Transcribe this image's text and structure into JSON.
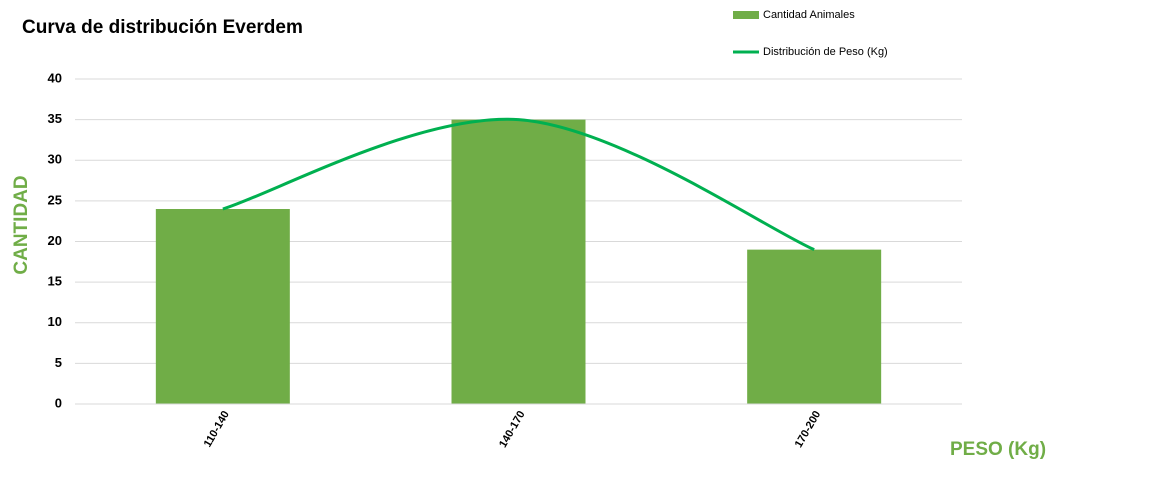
{
  "chart_data": {
    "type": "combo",
    "title": "Curva de distribución Everdem",
    "y_label": "CANTIDAD",
    "x_label": "PESO (Kg)",
    "categories": [
      "110-140",
      "140-170",
      "170-200"
    ],
    "series": [
      {
        "name": "Cantidad Animales",
        "type": "bar",
        "color": "#70ad47",
        "values": [
          24,
          35,
          19
        ]
      },
      {
        "name": "Distribución de Peso (Kg)",
        "type": "line",
        "color": "#00b050",
        "values": [
          24,
          35,
          19
        ]
      }
    ],
    "ylim": [
      0,
      40
    ],
    "yticks": [
      0,
      5,
      10,
      15,
      20,
      25,
      30,
      35,
      40
    ],
    "grid": true
  }
}
